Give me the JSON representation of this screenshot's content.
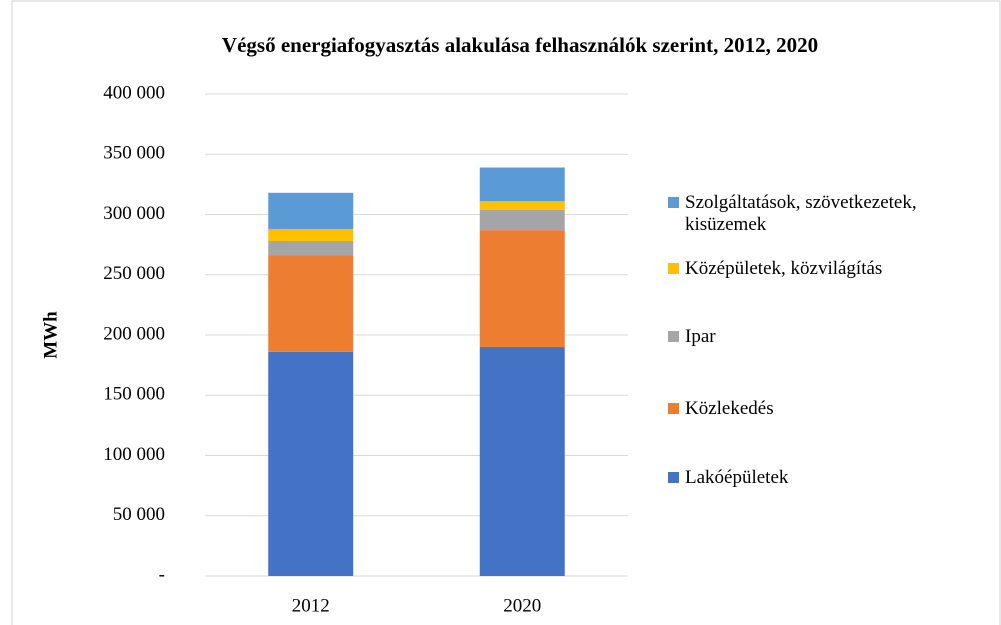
{
  "chart_data": {
    "type": "stacked_bar",
    "title": "Végső energiafogyasztás alakulása felhasználók szerint, 2012, 2020",
    "y_label": "MWh",
    "categories": [
      "2012",
      "2020"
    ],
    "series": [
      {
        "name": "Lakóépületek",
        "color": "#4472c4",
        "values": [
          186000,
          190000
        ]
      },
      {
        "name": "Közlekedés",
        "color": "#ed7d31",
        "values": [
          80000,
          97000
        ]
      },
      {
        "name": "Ipar",
        "color": "#a5a5a5",
        "values": [
          12000,
          17000
        ]
      },
      {
        "name": "Középületek, közvilágítás",
        "color": "#ffc000",
        "values": [
          10000,
          7000
        ]
      },
      {
        "name": "Szolgáltatások, szövetkezetek, kisüzemek",
        "color": "#5b9bd5",
        "values": [
          30000,
          28000
        ]
      }
    ],
    "ylim": [
      0,
      400000
    ],
    "yticks": [
      {
        "value": 0,
        "label": "-"
      },
      {
        "value": 50000,
        "label": "50 000"
      },
      {
        "value": 100000,
        "label": "100 000"
      },
      {
        "value": 150000,
        "label": "150 000"
      },
      {
        "value": 200000,
        "label": "200 000"
      },
      {
        "value": 250000,
        "label": "250 000"
      },
      {
        "value": 300000,
        "label": "300 000"
      },
      {
        "value": 350000,
        "label": "350 000"
      },
      {
        "value": 400000,
        "label": "400 000"
      }
    ],
    "grid": true,
    "legend": "right"
  }
}
